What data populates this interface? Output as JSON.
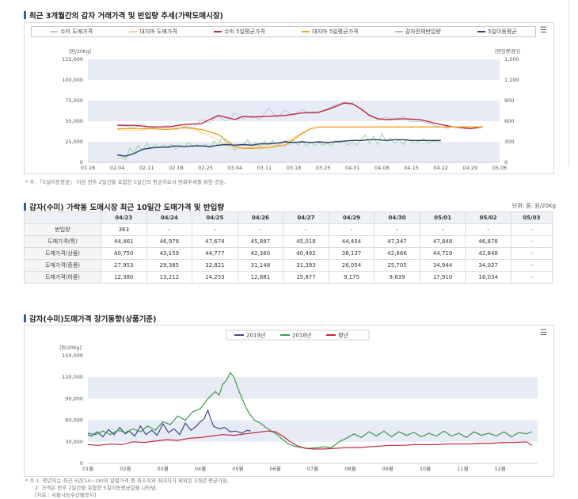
{
  "section1": {
    "title": "최근 3개월간의 감자 거래가격 및 반입량 추세(가락도매시장)",
    "legend": [
      {
        "label": "수미 도매가격",
        "color": "#b7c9e0"
      },
      {
        "label": "대지마 도매가격",
        "color": "#f4d38c"
      },
      {
        "label": "수미 5일평균가격",
        "color": "#c0283c"
      },
      {
        "label": "대지마 5일평균가격",
        "color": "#f0a020"
      },
      {
        "label": "감자전체반입량",
        "color": "#9fd49f"
      },
      {
        "label": "5일이동평균",
        "color": "#2c3e6e"
      }
    ],
    "note": "* 주. 「5일이동평균」 이란 전후 2일간을 포함한 5일간의 평균치로서 변화추세를 위한 것임.",
    "chart_data": {
      "type": "line",
      "left_axis_title": "[원/20Kg]",
      "right_axis_title": "[반입량(톤)]",
      "ylim": [
        0,
        125000
      ],
      "y_ticks": [
        "0",
        "25,000",
        "50,000",
        "75,000",
        "100,000",
        "125,000"
      ],
      "y2lim": [
        0,
        1500
      ],
      "y2_ticks": [
        "0",
        "300",
        "600",
        "900",
        "1,200",
        "1,500"
      ],
      "x_ticks": [
        "01.28",
        "02.04",
        "02.11",
        "02.18",
        "02.25",
        "03.04",
        "03.11",
        "03.18",
        "03.25",
        "04.01",
        "04.08",
        "04.15",
        "04.22",
        "04.29",
        "05.06"
      ],
      "xlim": [
        0,
        98
      ],
      "series": [
        {
          "name": "수미 도매가격",
          "axis": "left",
          "color": "#b7c9e0",
          "x": [
            7,
            9,
            11,
            13,
            15,
            17,
            19,
            21,
            23,
            25,
            27,
            29,
            31,
            33,
            35,
            37,
            39,
            41,
            43,
            45,
            47,
            49,
            51,
            53,
            55,
            57,
            59,
            61,
            63,
            65,
            67,
            69,
            71,
            73,
            75,
            77,
            79,
            81,
            83,
            85,
            86
          ],
          "y": [
            46000,
            44000,
            42000,
            47000,
            41000,
            43000,
            45000,
            40000,
            44000,
            42000,
            52000,
            48000,
            56000,
            50000,
            60000,
            53000,
            57000,
            52000,
            66000,
            55000,
            63000,
            57000,
            64000,
            59000,
            60000,
            65000,
            70000,
            73000,
            72000,
            64000,
            58000,
            52000,
            55000,
            52000,
            56000,
            49000,
            50000,
            47000,
            44000,
            42000,
            41000
          ]
        },
        {
          "name": "대지마 도매가격",
          "axis": "left",
          "color": "#f4d38c",
          "x": [
            7,
            11,
            15,
            19,
            23,
            25,
            27,
            29,
            31,
            33,
            35,
            37,
            39,
            41,
            43,
            45,
            47,
            49,
            51,
            53,
            55,
            57,
            59,
            61,
            63,
            67,
            71,
            75,
            79,
            83,
            87,
            91,
            94
          ],
          "y": [
            40000,
            38000,
            41000,
            40000,
            43000,
            42000,
            36000,
            32000,
            27000,
            20000,
            16000,
            17000,
            19000,
            20000,
            22000,
            20000,
            25000,
            30000,
            36000,
            41000,
            43000,
            43000,
            43000,
            43000,
            43000,
            43000,
            43000,
            43000,
            43000,
            43000,
            43000,
            43000,
            43000
          ]
        },
        {
          "name": "수미 5일평균가격",
          "axis": "left",
          "color": "#c0283c",
          "x": [
            7,
            11,
            15,
            19,
            23,
            27,
            31,
            35,
            37,
            39,
            43,
            47,
            51,
            55,
            57,
            59,
            61,
            63,
            65,
            67,
            69,
            71,
            75,
            79,
            83,
            87,
            91,
            94
          ],
          "y": [
            45000,
            45000,
            43000,
            43000,
            46000,
            47000,
            57000,
            52000,
            56000,
            55000,
            56000,
            57000,
            60000,
            61000,
            64000,
            68000,
            72000,
            71000,
            65000,
            57000,
            53000,
            52000,
            53000,
            52000,
            47000,
            43000,
            41000,
            43000
          ]
        },
        {
          "name": "대지마 5일평균가격",
          "axis": "left",
          "color": "#f0a020",
          "x": [
            7,
            11,
            15,
            19,
            23,
            27,
            31,
            35,
            37,
            39,
            43,
            47,
            49,
            51,
            53,
            55,
            59,
            63,
            67,
            71,
            75,
            79,
            83,
            87,
            91,
            94
          ],
          "y": [
            41000,
            41000,
            41000,
            40000,
            42000,
            40000,
            34000,
            19000,
            17000,
            17000,
            18000,
            21000,
            28000,
            35000,
            41000,
            43000,
            43000,
            43000,
            43000,
            43000,
            43000,
            43000,
            43000,
            43000,
            43000,
            43000
          ]
        },
        {
          "name": "감자전체반입량",
          "axis": "right",
          "color": "#9fd49f",
          "x": [
            7,
            8,
            9,
            10,
            11,
            12,
            13,
            14,
            15,
            16,
            17,
            18,
            19,
            20,
            21,
            22,
            23,
            24,
            25,
            26,
            27,
            28,
            29,
            30,
            31,
            32,
            33,
            34,
            35,
            36,
            37,
            38,
            39,
            40,
            41,
            42,
            43,
            44,
            45,
            46,
            47,
            48,
            49,
            50,
            51,
            52,
            53,
            54,
            55,
            56,
            57,
            58,
            59,
            60,
            61,
            62,
            63,
            64,
            65,
            66,
            67,
            68,
            69,
            70,
            71,
            72,
            73,
            74,
            75,
            76,
            77,
            78,
            79,
            80,
            81,
            82,
            83,
            84
          ],
          "y": [
            60,
            80,
            40,
            210,
            130,
            250,
            170,
            280,
            200,
            260,
            210,
            250,
            230,
            260,
            190,
            250,
            230,
            290,
            220,
            260,
            230,
            260,
            210,
            310,
            240,
            380,
            260,
            300,
            170,
            260,
            250,
            330,
            240,
            290,
            220,
            310,
            250,
            320,
            240,
            290,
            310,
            260,
            330,
            250,
            320,
            230,
            300,
            240,
            290,
            250,
            280,
            240,
            320,
            280,
            310,
            250,
            300,
            250,
            330,
            400,
            280,
            380,
            260,
            420,
            300,
            350,
            280,
            330,
            260,
            340,
            300,
            290,
            310,
            340,
            280,
            310,
            300,
            290
          ]
        },
        {
          "name": "5일이동평균",
          "axis": "right",
          "color": "#2c3e6e",
          "x": [
            7,
            9,
            11,
            13,
            15,
            17,
            19,
            21,
            23,
            25,
            27,
            29,
            31,
            33,
            35,
            37,
            39,
            41,
            43,
            45,
            47,
            49,
            51,
            53,
            55,
            57,
            59,
            61,
            63,
            65,
            67,
            69,
            71,
            73,
            75,
            77,
            79,
            81,
            83,
            84
          ],
          "y": [
            110,
            90,
            130,
            190,
            210,
            220,
            220,
            240,
            230,
            240,
            240,
            230,
            250,
            260,
            250,
            260,
            250,
            270,
            270,
            280,
            300,
            290,
            300,
            290,
            300,
            290,
            300,
            310,
            320,
            320,
            330,
            330,
            320,
            330,
            330,
            320,
            320,
            320,
            320,
            320
          ]
        }
      ]
    }
  },
  "section2": {
    "title": "감자(수미) 가락동 도매시장 최근 10일간 도매가격 및 반입량",
    "unit": "단위: 톤, 원/20Kg",
    "table": {
      "columns": [
        "",
        "04/23",
        "04/24",
        "04/25",
        "04/26",
        "04/27",
        "04/29",
        "04/30",
        "05/01",
        "05/02",
        "05/03"
      ],
      "rows": [
        [
          "반입량",
          "363",
          "-",
          "-",
          "-",
          "-",
          "-",
          "-",
          "-",
          "-",
          "-"
        ],
        [
          "도매가격(특)",
          "44,461",
          "46,978",
          "47,674",
          "45,887",
          "45,018",
          "44,454",
          "47,347",
          "47,848",
          "46,878",
          "-"
        ],
        [
          "도매가격(상품)",
          "40,750",
          "43,159",
          "44,777",
          "42,360",
          "40,492",
          "38,137",
          "42,666",
          "44,719",
          "42,848",
          "-"
        ],
        [
          "도매가격(중품)",
          "27,953",
          "29,385",
          "32,821",
          "31,148",
          "31,393",
          "26,054",
          "25,705",
          "34,944",
          "34,027",
          "-"
        ],
        [
          "도매가격(하품)",
          "12,380",
          "13,212",
          "14,253",
          "12,881",
          "15,877",
          "9,175",
          "9,639",
          "17,910",
          "16,034",
          "-"
        ]
      ]
    }
  },
  "section3": {
    "title": "감자(수미)도매가격 장기동향(상품기준)",
    "legend": [
      {
        "label": "2019년",
        "color": "#3b4a8c"
      },
      {
        "label": "2018년",
        "color": "#3c9a4a"
      },
      {
        "label": "평년",
        "color": "#c0283c"
      }
    ],
    "notes": [
      "* 주 1. 평년치는 최근 5년(14~18)의 일별가격 중 최소치와 최대치가 제외된 3개년 평균가임.",
      "2. 가격은 전후 2일간을 포함한 5일이동평균값을 나타냄.",
      "[자료 : 서울시농수산물공사]"
    ],
    "chart_data": {
      "type": "line",
      "left_axis_title": "[원/20Kg]",
      "ylim": [
        0,
        150000
      ],
      "y_ticks": [
        "0",
        "30,000",
        "60,000",
        "90,000",
        "120,000",
        "150,000"
      ],
      "x_ticks": [
        "01월",
        "02월",
        "03월",
        "04월",
        "05월",
        "06월",
        "07월",
        "08월",
        "09월",
        "10월",
        "11월",
        "12월"
      ],
      "xlim": [
        0,
        12
      ],
      "series": [
        {
          "name": "2019년",
          "color": "#3b4a8c",
          "x": [
            0,
            0.1,
            0.25,
            0.4,
            0.55,
            0.7,
            0.85,
            1.0,
            1.1,
            1.25,
            1.4,
            1.55,
            1.7,
            1.85,
            2.0,
            2.15,
            2.3,
            2.45,
            2.6,
            2.75,
            2.9,
            3.0,
            3.1,
            3.2,
            3.25,
            3.35,
            3.5,
            3.65,
            3.8,
            3.95,
            4.1,
            4.25,
            4.35
          ],
          "y": [
            40000,
            38000,
            44000,
            37000,
            47000,
            40000,
            50000,
            41000,
            45000,
            38000,
            52000,
            40000,
            46000,
            39000,
            55000,
            43000,
            48000,
            40000,
            56000,
            46000,
            52000,
            58000,
            62000,
            74000,
            66000,
            52000,
            48000,
            50000,
            44000,
            45000,
            42000,
            46000,
            45000
          ]
        },
        {
          "name": "2018년",
          "color": "#3c9a4a",
          "x": [
            0,
            0.2,
            0.4,
            0.6,
            0.8,
            1.0,
            1.2,
            1.4,
            1.6,
            1.8,
            2.0,
            2.2,
            2.4,
            2.6,
            2.8,
            3.0,
            3.2,
            3.4,
            3.5,
            3.6,
            3.7,
            3.8,
            3.9,
            4.0,
            4.1,
            4.2,
            4.3,
            4.45,
            4.6,
            4.75,
            4.9,
            5.05,
            5.2,
            5.35,
            5.5,
            5.7,
            5.9,
            6.1,
            6.3,
            6.5,
            6.7,
            6.9,
            7.1,
            7.3,
            7.5,
            7.7,
            7.9,
            8.1,
            8.3,
            8.5,
            8.7,
            8.9,
            9.1,
            9.3,
            9.5,
            9.7,
            9.9,
            10.1,
            10.3,
            10.5,
            10.7,
            10.9,
            11.1,
            11.3,
            11.5,
            11.7,
            11.85
          ],
          "y": [
            42000,
            40000,
            45000,
            40000,
            46000,
            43000,
            48000,
            44000,
            52000,
            46000,
            58000,
            54000,
            66000,
            60000,
            72000,
            76000,
            90000,
            100000,
            95000,
            110000,
            116000,
            126000,
            120000,
            105000,
            92000,
            80000,
            70000,
            60000,
            56000,
            50000,
            45000,
            40000,
            33000,
            27000,
            24000,
            22000,
            21000,
            22000,
            23000,
            22000,
            30000,
            35000,
            41000,
            36000,
            44000,
            38000,
            45000,
            37000,
            44000,
            39000,
            43000,
            37000,
            42000,
            38000,
            45000,
            38000,
            42000,
            36000,
            44000,
            39000,
            42000,
            38000,
            44000,
            37000,
            43000,
            41000,
            44000
          ]
        },
        {
          "name": "평년",
          "color": "#c0283c",
          "x": [
            0,
            0.3,
            0.6,
            0.9,
            1.2,
            1.5,
            1.8,
            2.1,
            2.4,
            2.7,
            3.0,
            3.3,
            3.6,
            3.9,
            4.2,
            4.5,
            4.8,
            5.0,
            5.2,
            5.4,
            5.6,
            5.8,
            6.0,
            6.3,
            6.6,
            6.9,
            7.2,
            7.5,
            7.8,
            8.1,
            8.4,
            8.7,
            9.0,
            9.3,
            9.6,
            9.9,
            10.2,
            10.5,
            10.8,
            11.1,
            11.4,
            11.7,
            11.85
          ],
          "y": [
            26000,
            25000,
            27000,
            26000,
            30000,
            29000,
            31000,
            33000,
            32000,
            35000,
            36000,
            38000,
            40000,
            39000,
            41000,
            43000,
            45000,
            44000,
            38000,
            30000,
            24000,
            21000,
            20000,
            20000,
            21000,
            22000,
            22000,
            23000,
            24000,
            25000,
            25000,
            26000,
            26000,
            26000,
            27000,
            27000,
            27000,
            28000,
            28000,
            29000,
            29000,
            30000,
            25000
          ]
        }
      ]
    }
  }
}
